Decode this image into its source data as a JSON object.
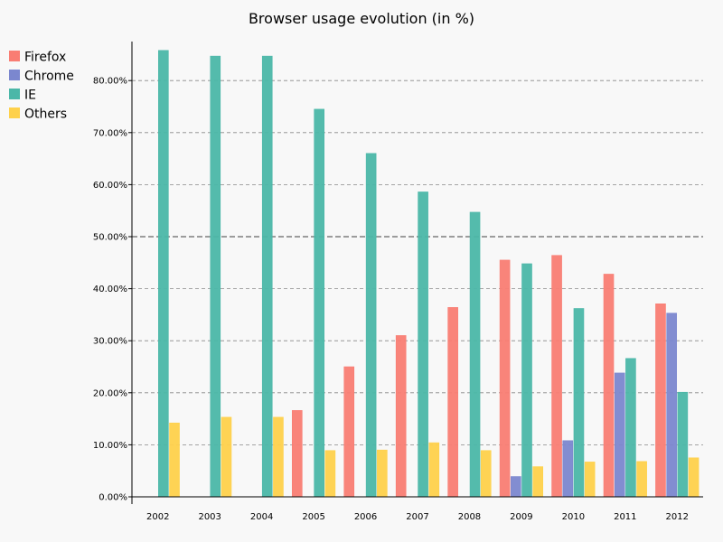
{
  "chart_data": {
    "type": "bar",
    "title": "Browser usage evolution (in %)",
    "xlabel": "",
    "ylabel": "",
    "categories": [
      "2002",
      "2003",
      "2004",
      "2005",
      "2006",
      "2007",
      "2008",
      "2009",
      "2010",
      "2011",
      "2012"
    ],
    "series": [
      {
        "name": "Firefox",
        "color": "#f97d73",
        "values": [
          null,
          null,
          null,
          16.6,
          25.0,
          31.0,
          36.4,
          45.5,
          46.4,
          42.8,
          37.1
        ]
      },
      {
        "name": "Chrome",
        "color": "#7b87cf",
        "values": [
          null,
          null,
          null,
          null,
          null,
          null,
          null,
          3.9,
          10.8,
          23.8,
          35.3
        ]
      },
      {
        "name": "IE",
        "color": "#4bb7a8",
        "values": [
          85.8,
          84.7,
          84.7,
          74.5,
          66.0,
          58.6,
          54.7,
          44.8,
          36.2,
          26.6,
          20.1
        ]
      },
      {
        "name": "Others",
        "color": "#fed14b",
        "values": [
          14.2,
          15.3,
          15.3,
          8.9,
          9.0,
          10.4,
          8.9,
          5.8,
          6.7,
          6.8,
          7.5
        ]
      }
    ],
    "y_ticks": [
      "0.00%",
      "10.00%",
      "20.00%",
      "30.00%",
      "40.00%",
      "50.00%",
      "60.00%",
      "70.00%",
      "80.00%"
    ],
    "ylim": [
      0,
      87
    ],
    "grid": "horizontal dashed",
    "legend_position": "top-left"
  }
}
